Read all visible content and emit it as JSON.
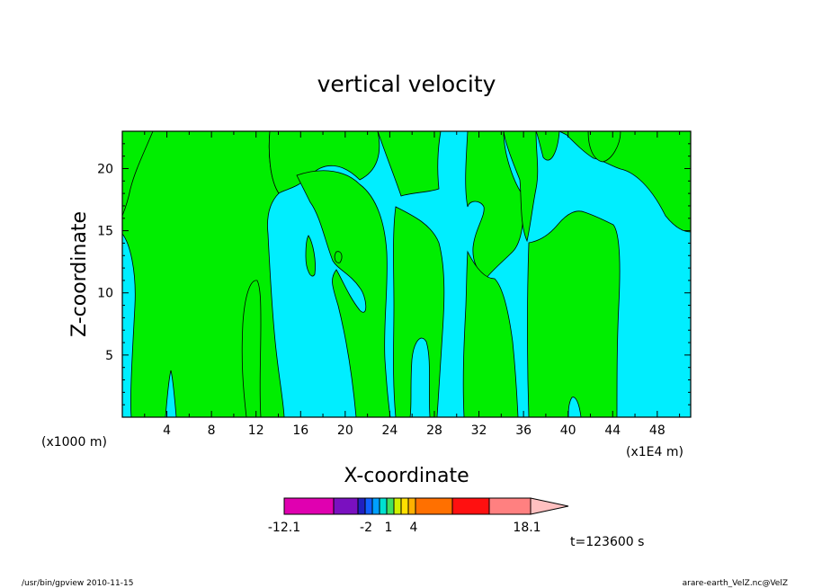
{
  "chart_data": {
    "type": "heatmap",
    "title": "vertical velocity",
    "xlabel": "X-coordinate",
    "ylabel": "Z-coordinate",
    "x_unit_left": "(x1000 m)",
    "x_unit_right": "(x1E4 m)",
    "xlim": [
      0,
      51
    ],
    "ylim": [
      0,
      23
    ],
    "x_ticks": [
      "4",
      "8",
      "12",
      "16",
      "20",
      "24",
      "28",
      "32",
      "36",
      "40",
      "44",
      "48"
    ],
    "y_ticks": [
      "5",
      "10",
      "15",
      "20"
    ],
    "grid": false,
    "colorbar": {
      "colors": [
        "#e000b0",
        "#7a10c0",
        "#2020c0",
        "#1060ff",
        "#00a0ff",
        "#00e0d0",
        "#40e060",
        "#d0f000",
        "#ffe000",
        "#ffb000",
        "#ff7000",
        "#ff1010",
        "#ff8080",
        "#ffc0c0"
      ],
      "labels": [
        "-12.1",
        "-2",
        "1",
        "4",
        "18.1"
      ]
    },
    "regions": {
      "negative_color": "#00eeff",
      "positive_color": "#00ee00",
      "negative_range": "-2 to 1",
      "positive_range": "1 to 4"
    },
    "time_label": "t=123600 s"
  },
  "footer": {
    "left": "/usr/bin/gpview   2010-11-15",
    "right": "arare-earth_VelZ.nc@VelZ"
  }
}
